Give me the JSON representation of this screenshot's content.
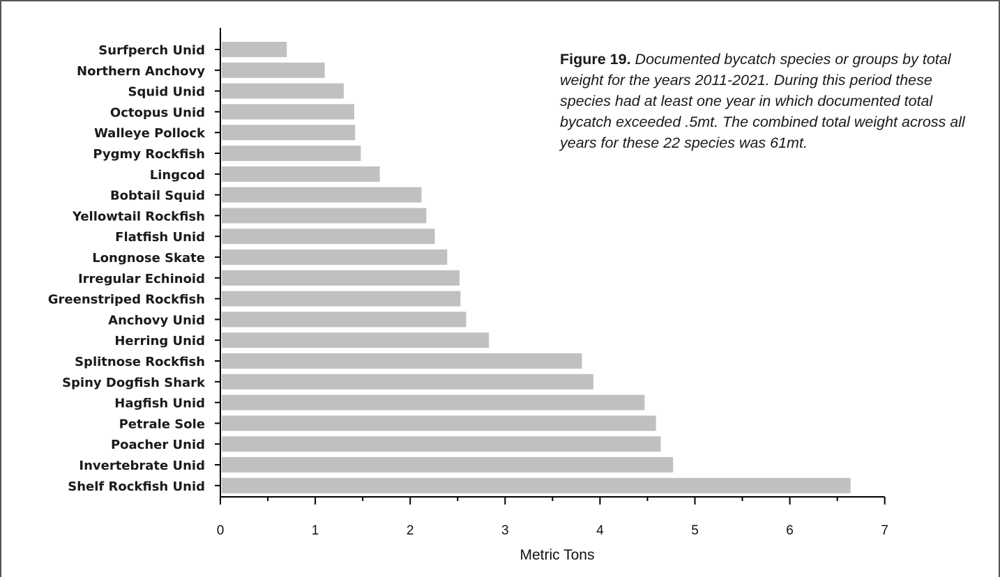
{
  "caption": {
    "figure_number": "Figure 19.",
    "text": "Documented bycatch species or groups by total weight for the years 2011-2021. During this period these species had at least one year in which documented total bycatch exceeded .5mt.  The combined total weight across all years for these 22 species was 61mt."
  },
  "colors": {
    "bar": "#c0c0c0",
    "axis": "#000000",
    "frame": "#555555"
  },
  "chart_data": {
    "type": "bar",
    "orientation": "horizontal",
    "categories": [
      "Surfperch Unid",
      "Northern Anchovy",
      "Squid Unid",
      "Octopus Unid",
      "Walleye Pollock",
      "Pygmy Rockfish",
      "Lingcod",
      "Bobtail Squid",
      "Yellowtail Rockfish",
      "Flatfish Unid",
      "Longnose Skate",
      "Irregular Echinoid",
      "Greenstriped Rockfish",
      "Anchovy Unid",
      "Herring Unid",
      "Splitnose Rockfish",
      "Spiny Dogfish Shark",
      "Hagfish Unid",
      "Petrale Sole",
      "Poacher Unid",
      "Invertebrate Unid",
      "Shelf Rockfish Unid"
    ],
    "values": [
      0.7,
      1.1,
      1.3,
      1.41,
      1.42,
      1.48,
      1.68,
      2.12,
      2.17,
      2.26,
      2.39,
      2.52,
      2.53,
      2.59,
      2.83,
      3.81,
      3.93,
      4.47,
      4.59,
      4.64,
      4.77,
      6.64
    ],
    "xlabel": "Metric Tons",
    "ylabel": "",
    "xlim": [
      0,
      7
    ],
    "xticks": [
      "0",
      "1",
      "2",
      "3",
      "4",
      "5",
      "6",
      "7"
    ],
    "grid": false,
    "legend": "none"
  }
}
